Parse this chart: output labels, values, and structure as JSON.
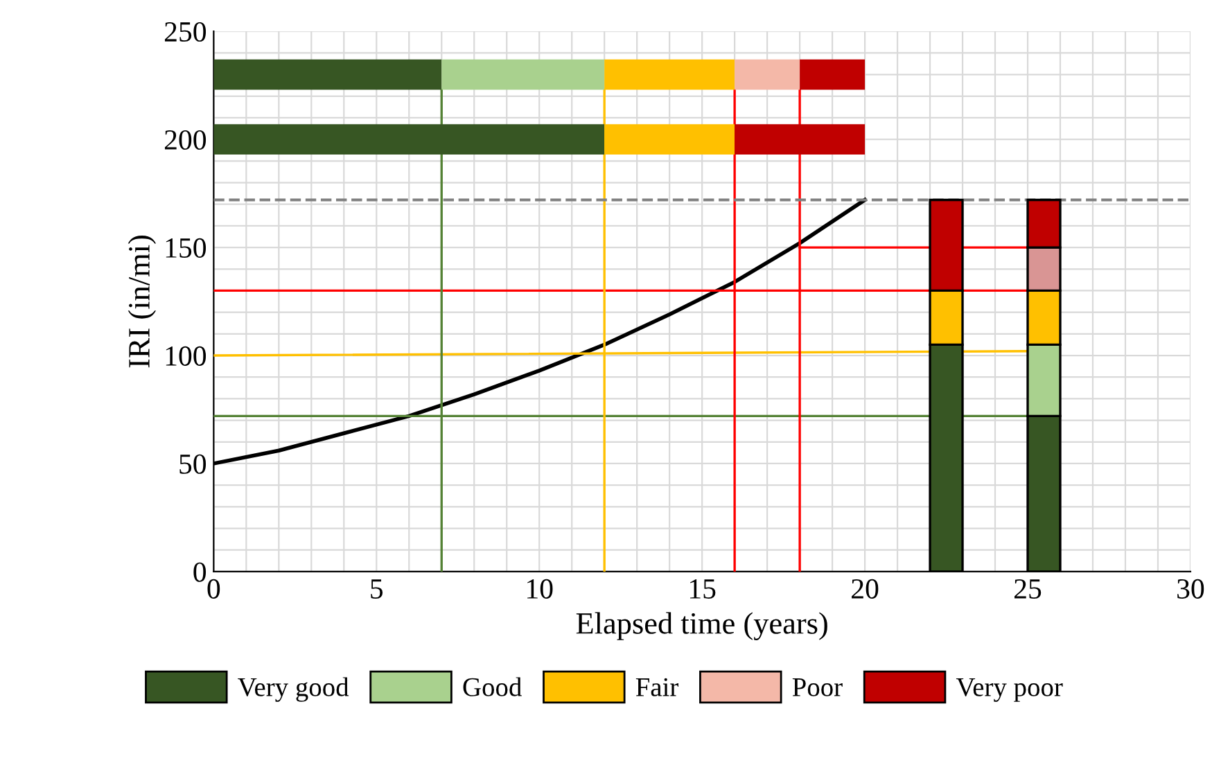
{
  "chart_data": {
    "type": "line",
    "xlabel": "Elapsed time (years)",
    "ylabel": "IRI (in/mi)",
    "xlim": [
      0,
      30
    ],
    "xticks": [
      0,
      5,
      10,
      15,
      20,
      25,
      30
    ],
    "ylim": [
      0,
      250
    ],
    "yticks": [
      0,
      50,
      100,
      150,
      200,
      250
    ],
    "grid": true,
    "legend": "bottom",
    "marker": "none",
    "ref_lines": [
      {
        "axis": "y",
        "value": 172,
        "color": "#808080",
        "line_style": "dashed"
      }
    ],
    "series": [
      {
        "color": "#000000",
        "x": [
          0,
          2,
          4,
          6,
          8,
          10,
          12,
          14,
          16,
          18,
          20
        ],
        "values": [
          50,
          56,
          64,
          72,
          82,
          93,
          105,
          119,
          134,
          152,
          172
        ]
      },
      {
        "color": "#548235",
        "x": [
          0,
          25
        ],
        "values": [
          72,
          72
        ]
      },
      {
        "color": "#ffc000",
        "x": [
          0,
          25
        ],
        "values": [
          100,
          102
        ]
      },
      {
        "color": "#ff0000",
        "x": [
          0,
          25
        ],
        "values": [
          130,
          130
        ]
      },
      {
        "color": "#ff0000",
        "x": [
          18,
          25
        ],
        "values": [
          150,
          150
        ]
      },
      {
        "color": "#548235",
        "x": [
          7,
          7
        ],
        "values": [
          0,
          223
        ]
      },
      {
        "color": "#ffc000",
        "x": [
          12,
          12
        ],
        "values": [
          0,
          223
        ]
      },
      {
        "color": "#ff0000",
        "x": [
          16,
          16
        ],
        "values": [
          0,
          223
        ]
      },
      {
        "color": "#ff0000",
        "x": [
          18,
          18
        ],
        "values": [
          0,
          223
        ]
      },
      {
        "type": "step",
        "name": "Very good",
        "color": "#375623",
        "x": [
          0,
          7
        ],
        "values": [
          230,
          230
        ]
      },
      {
        "type": "step",
        "name": "Good",
        "color": "#a9d18e",
        "x": [
          7,
          12
        ],
        "values": [
          230,
          230
        ]
      },
      {
        "type": "step",
        "name": "Fair",
        "color": "#ffc000",
        "x": [
          12,
          16
        ],
        "values": [
          230,
          230
        ]
      },
      {
        "type": "step",
        "name": "Poor",
        "color": "#f4b8a8",
        "x": [
          16,
          18
        ],
        "values": [
          230,
          230
        ]
      },
      {
        "type": "step",
        "name": "Very poor",
        "color": "#c00000",
        "x": [
          18,
          20
        ],
        "values": [
          230,
          230
        ]
      },
      {
        "type": "step",
        "color": "#375623",
        "x": [
          0,
          12
        ],
        "values": [
          200,
          200
        ]
      },
      {
        "type": "step",
        "color": "#ffc000",
        "x": [
          12,
          16
        ],
        "values": [
          200,
          200
        ]
      },
      {
        "type": "step",
        "color": "#c00000",
        "x": [
          16,
          20
        ],
        "values": [
          200,
          200
        ]
      },
      {
        "type": "bar",
        "color": "#375623",
        "x": [
          22.5,
          25.5
        ],
        "base": [
          0,
          0
        ],
        "values": [
          105,
          72
        ]
      },
      {
        "type": "bar",
        "color": "#a9d18e",
        "x": [
          25.5
        ],
        "base": [
          72
        ],
        "values": [
          33
        ]
      },
      {
        "type": "bar",
        "color": "#ffc000",
        "x": [
          22.5,
          25.5
        ],
        "base": [
          105,
          105
        ],
        "values": [
          25,
          25
        ]
      },
      {
        "type": "bar",
        "color": "#d99594",
        "x": [
          25.5
        ],
        "base": [
          130
        ],
        "values": [
          20
        ]
      },
      {
        "type": "bar",
        "color": "#c00000",
        "x": [
          22.5,
          25.5
        ],
        "base": [
          130,
          150
        ],
        "values": [
          42,
          22
        ]
      }
    ]
  }
}
